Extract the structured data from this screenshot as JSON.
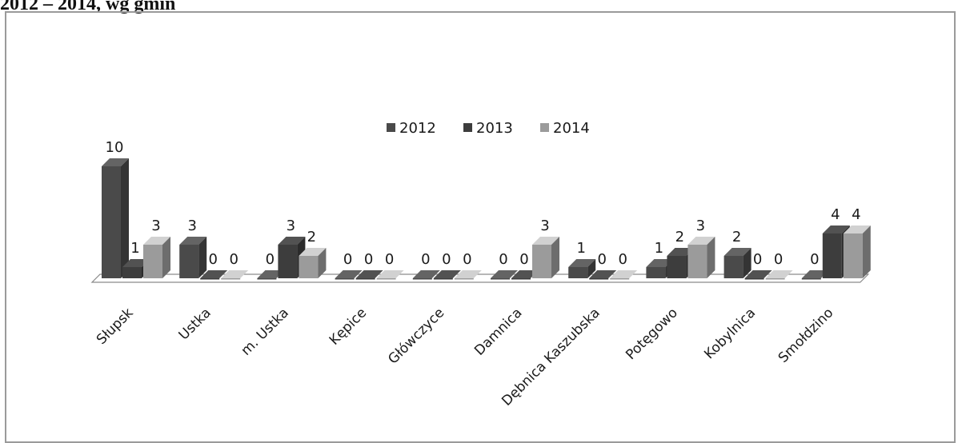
{
  "heading": "2012 – 2014, wg gmin",
  "chart_data": {
    "type": "bar",
    "categories": [
      "Słupsk",
      "Ustka",
      "m. Ustka",
      "Kępice",
      "Główczyce",
      "Damnica",
      "Dębnica Kaszubska",
      "Potęgowo",
      "Kobylnica",
      "Smołdzino"
    ],
    "series": [
      {
        "name": "2012",
        "values": [
          10,
          3,
          0,
          0,
          0,
          0,
          1,
          1,
          2,
          0
        ],
        "color": "#4a4a4a"
      },
      {
        "name": "2013",
        "values": [
          1,
          0,
          3,
          0,
          0,
          0,
          0,
          2,
          0,
          4
        ],
        "color": "#3d3d3d"
      },
      {
        "name": "2014",
        "values": [
          3,
          0,
          2,
          0,
          0,
          3,
          0,
          3,
          0,
          4
        ],
        "color": "#9b9b9b"
      }
    ],
    "legend_position": "top-center",
    "grid": false,
    "three_d": true
  }
}
